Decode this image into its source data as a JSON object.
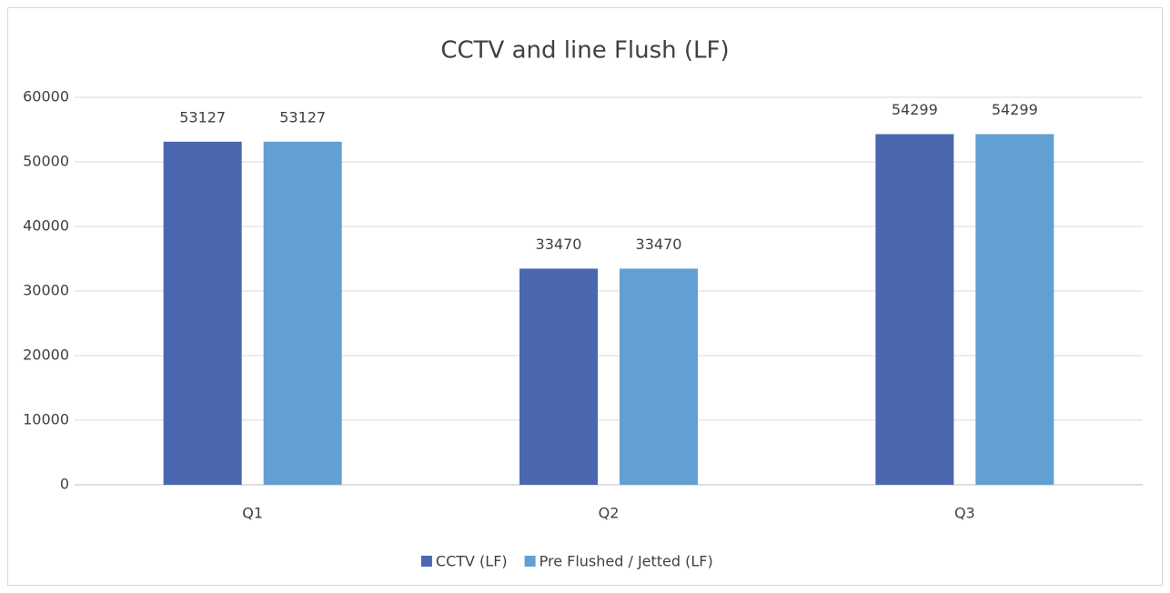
{
  "chart_data": {
    "type": "bar",
    "title": "CCTV and line Flush (LF)",
    "categories": [
      "Q1",
      "Q2",
      "Q3"
    ],
    "series": [
      {
        "name": "CCTV (LF)",
        "color": "#4a67b0",
        "values": [
          53127,
          33470,
          54299
        ]
      },
      {
        "name": "Pre Flushed / Jetted (LF)",
        "color": "#629fd3",
        "values": [
          53127,
          33470,
          54299
        ]
      }
    ],
    "ylim": [
      0,
      60000
    ],
    "yticks": [
      0,
      10000,
      20000,
      30000,
      40000,
      50000,
      60000
    ],
    "grid": true,
    "legend": "bottom",
    "data_labels": true
  }
}
